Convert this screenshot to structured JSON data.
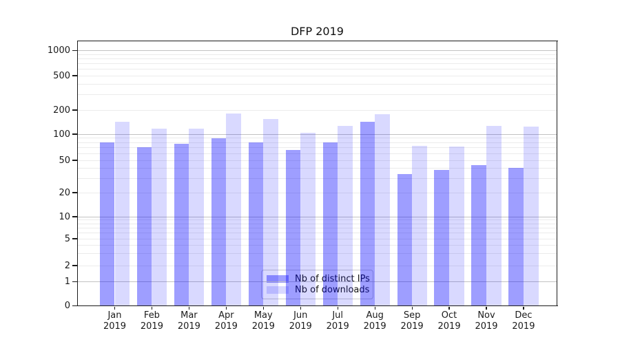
{
  "figure": {
    "background": "#ffffff"
  },
  "chart_data": {
    "type": "bar",
    "title": "DFP 2019",
    "categories": [
      "Jan 2019",
      "Feb 2019",
      "Mar 2019",
      "Apr 2019",
      "May 2019",
      "Jun 2019",
      "Jul 2019",
      "Aug 2019",
      "Sep 2019",
      "Oct 2019",
      "Nov 2019",
      "Dec 2019"
    ],
    "series": [
      {
        "name": "Nb of distinct IPs",
        "color": "#0000ff",
        "alpha": 0.38,
        "values": [
          80,
          71,
          77,
          90,
          80,
          66,
          80,
          143,
          34,
          38,
          44,
          40
        ]
      },
      {
        "name": "Nb of downloads",
        "color": "#0000ff",
        "alpha": 0.15,
        "values": [
          143,
          117,
          117,
          180,
          155,
          105,
          128,
          177,
          74,
          72,
          128,
          124
        ]
      }
    ],
    "xlabel": "",
    "ylabel": "",
    "yscale": "symlog",
    "ylim": [
      0,
      1300
    ],
    "yticks": [
      0,
      1,
      2,
      5,
      10,
      20,
      50,
      100,
      200,
      500,
      1000
    ],
    "grid": true,
    "grid_major_color": "#c2c2c2",
    "grid_minor_color": "#ebebeb",
    "legend_position": "lower center"
  }
}
